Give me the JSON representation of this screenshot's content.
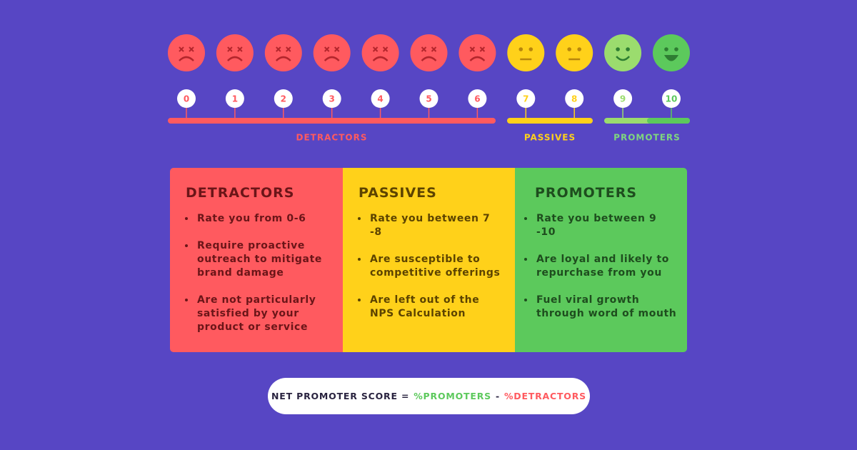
{
  "scale": {
    "points": [
      "0",
      "1",
      "2",
      "3",
      "4",
      "5",
      "6",
      "7",
      "8",
      "9",
      "10"
    ],
    "groups": [
      {
        "label": "DETRACTORS"
      },
      {
        "label": "PASSIVES"
      },
      {
        "label": "PROMOTERS"
      }
    ]
  },
  "cards": [
    {
      "title": "DETRACTORS",
      "bullets": [
        "Rate you from 0-6",
        "Require proactive outreach to mitigate brand damage",
        "Are not particularly satisfied by your product or service"
      ]
    },
    {
      "title": "PASSIVES",
      "bullets": [
        "Rate you between 7 -8",
        "Are susceptible to competitive offerings",
        "Are left out of the NPS Calculation"
      ]
    },
    {
      "title": "PROMOTERS",
      "bullets": [
        "Rate you between 9 -10",
        "Are loyal and likely to repurchase from you",
        "Fuel viral growth through word of mouth"
      ]
    }
  ],
  "formula": {
    "lhs": "NET PROMOTER SCORE =",
    "promoters": "%PROMOTERS",
    "minus": "-",
    "detractors": "%DETRACTORS"
  }
}
